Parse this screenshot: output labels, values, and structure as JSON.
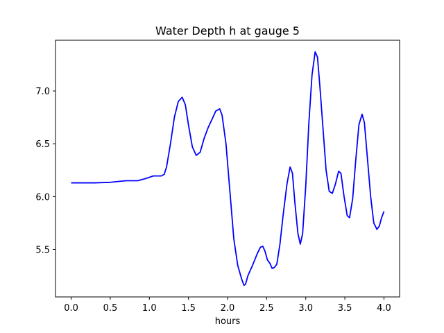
{
  "chart_data": {
    "type": "line",
    "title": "Water Depth h at gauge 5",
    "xlabel": "hours",
    "ylabel": "",
    "xlim": [
      -0.2,
      4.2
    ],
    "ylim": [
      5.05,
      7.48
    ],
    "x_ticks": [
      "0.0",
      "0.5",
      "1.0",
      "1.5",
      "2.0",
      "2.5",
      "3.0",
      "3.5",
      "4.0"
    ],
    "y_ticks": [
      "5.5",
      "6.0",
      "6.5",
      "7.0"
    ],
    "grid": false,
    "legend": "none",
    "series": [
      {
        "color": "#0000ff",
        "points": [
          [
            0.0,
            6.13
          ],
          [
            0.3,
            6.13
          ],
          [
            0.5,
            6.135
          ],
          [
            0.7,
            6.15
          ],
          [
            0.85,
            6.15
          ],
          [
            0.95,
            6.17
          ],
          [
            1.05,
            6.195
          ],
          [
            1.15,
            6.195
          ],
          [
            1.19,
            6.21
          ],
          [
            1.22,
            6.28
          ],
          [
            1.27,
            6.5
          ],
          [
            1.32,
            6.75
          ],
          [
            1.37,
            6.9
          ],
          [
            1.42,
            6.94
          ],
          [
            1.46,
            6.87
          ],
          [
            1.5,
            6.68
          ],
          [
            1.55,
            6.47
          ],
          [
            1.6,
            6.39
          ],
          [
            1.65,
            6.42
          ],
          [
            1.7,
            6.55
          ],
          [
            1.75,
            6.65
          ],
          [
            1.8,
            6.73
          ],
          [
            1.85,
            6.81
          ],
          [
            1.9,
            6.83
          ],
          [
            1.93,
            6.77
          ],
          [
            1.98,
            6.5
          ],
          [
            2.03,
            6.05
          ],
          [
            2.08,
            5.6
          ],
          [
            2.13,
            5.35
          ],
          [
            2.18,
            5.22
          ],
          [
            2.21,
            5.16
          ],
          [
            2.23,
            5.17
          ],
          [
            2.26,
            5.25
          ],
          [
            2.32,
            5.35
          ],
          [
            2.38,
            5.46
          ],
          [
            2.42,
            5.52
          ],
          [
            2.45,
            5.53
          ],
          [
            2.48,
            5.48
          ],
          [
            2.51,
            5.4
          ],
          [
            2.54,
            5.37
          ],
          [
            2.57,
            5.32
          ],
          [
            2.6,
            5.33
          ],
          [
            2.63,
            5.36
          ],
          [
            2.67,
            5.55
          ],
          [
            2.71,
            5.82
          ],
          [
            2.76,
            6.12
          ],
          [
            2.8,
            6.28
          ],
          [
            2.83,
            6.22
          ],
          [
            2.86,
            5.95
          ],
          [
            2.9,
            5.65
          ],
          [
            2.93,
            5.55
          ],
          [
            2.96,
            5.65
          ],
          [
            3.0,
            6.1
          ],
          [
            3.04,
            6.7
          ],
          [
            3.08,
            7.15
          ],
          [
            3.12,
            7.37
          ],
          [
            3.15,
            7.32
          ],
          [
            3.18,
            7.05
          ],
          [
            3.22,
            6.65
          ],
          [
            3.26,
            6.25
          ],
          [
            3.3,
            6.05
          ],
          [
            3.34,
            6.03
          ],
          [
            3.38,
            6.12
          ],
          [
            3.42,
            6.24
          ],
          [
            3.45,
            6.22
          ],
          [
            3.49,
            6.0
          ],
          [
            3.53,
            5.82
          ],
          [
            3.56,
            5.8
          ],
          [
            3.6,
            5.98
          ],
          [
            3.64,
            6.35
          ],
          [
            3.68,
            6.68
          ],
          [
            3.72,
            6.78
          ],
          [
            3.75,
            6.7
          ],
          [
            3.79,
            6.35
          ],
          [
            3.83,
            6.0
          ],
          [
            3.87,
            5.75
          ],
          [
            3.91,
            5.69
          ],
          [
            3.94,
            5.72
          ],
          [
            3.97,
            5.8
          ],
          [
            4.0,
            5.86
          ]
        ]
      }
    ]
  }
}
